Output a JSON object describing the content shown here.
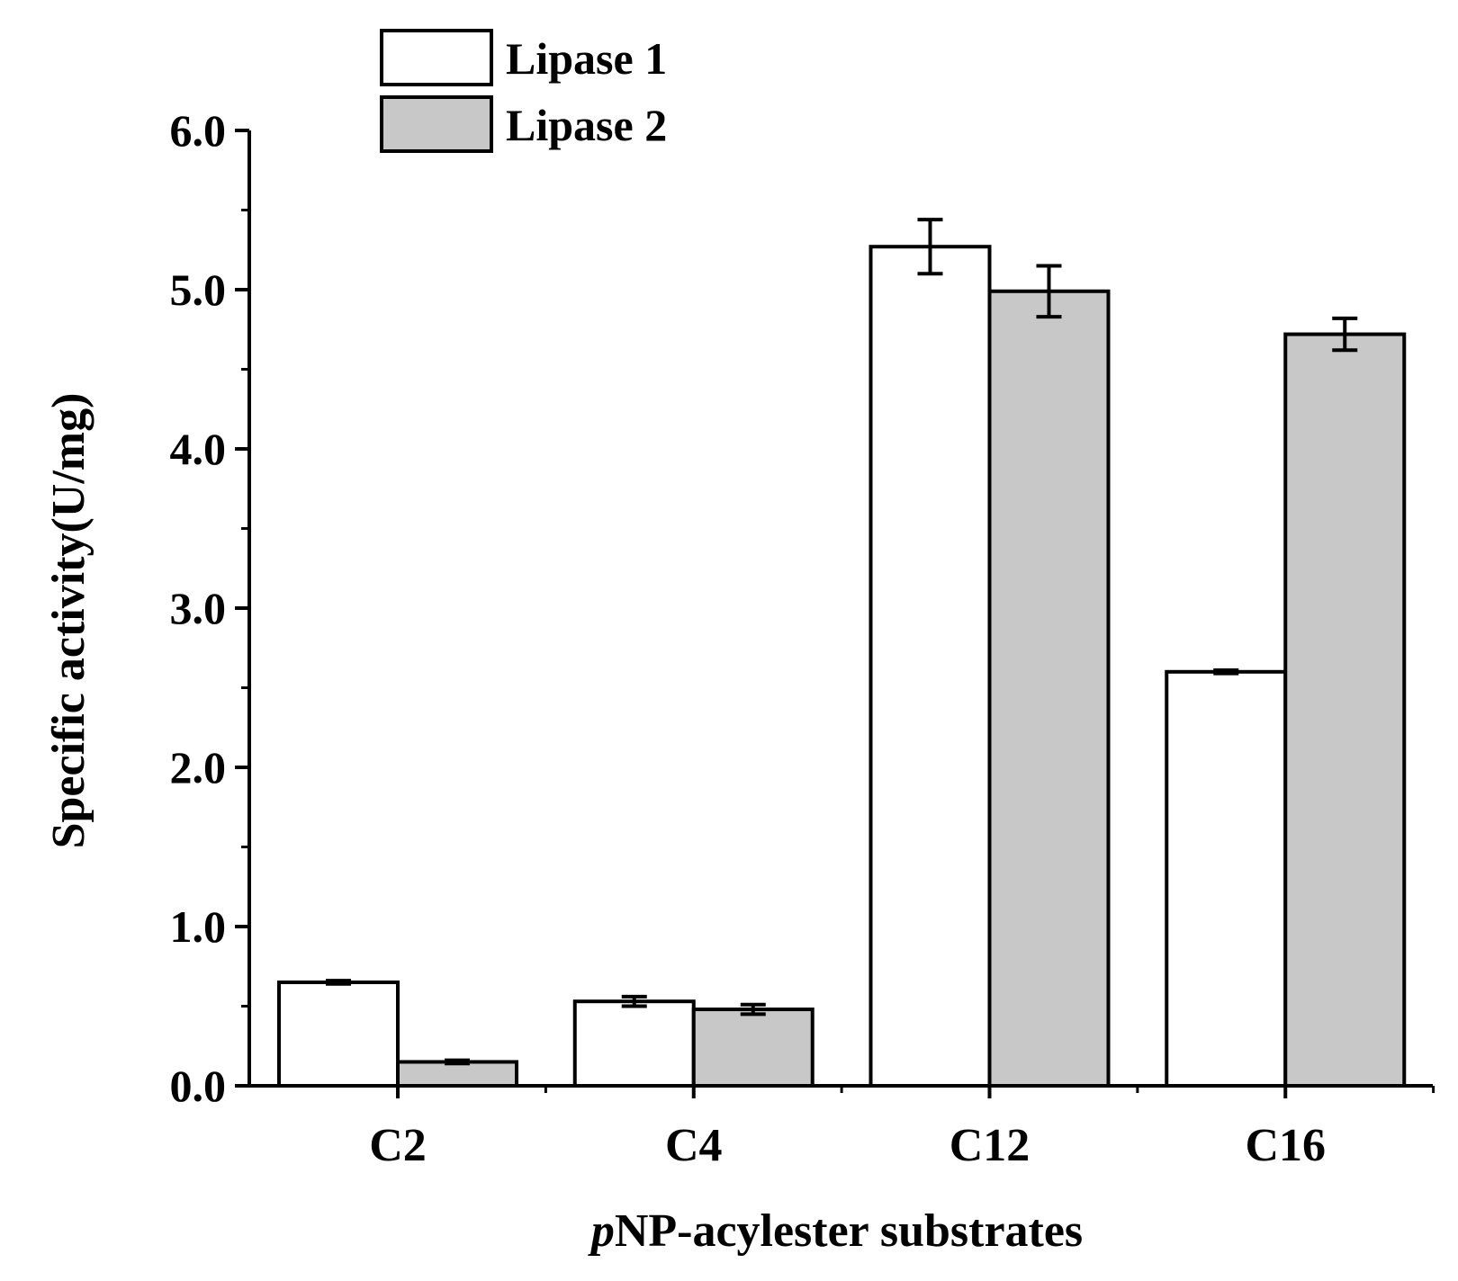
{
  "chart_data": {
    "type": "bar",
    "xlabel_italic_prefix": "p",
    "xlabel_rest": "NP-acylester substrates",
    "ylabel": "Specific activity(U/mg)",
    "categories": [
      "C2",
      "C4",
      "C12",
      "C16"
    ],
    "ylim": [
      0,
      6
    ],
    "yticks": [
      0,
      1,
      2,
      3,
      4,
      5,
      6
    ],
    "ytick_labels": [
      "0.0",
      "1.0",
      "2.0",
      "3.0",
      "4.0",
      "5.0",
      "6.0"
    ],
    "legend_position": "top-left",
    "series": [
      {
        "name": "Lipase 1",
        "color": "#ffffff",
        "values": [
          0.65,
          0.53,
          5.27,
          2.6
        ],
        "errors": [
          0.01,
          0.03,
          0.17,
          0.01
        ]
      },
      {
        "name": "Lipase 2",
        "color": "#c8c8c8",
        "values": [
          0.15,
          0.48,
          4.99,
          4.72
        ],
        "errors": [
          0.01,
          0.03,
          0.16,
          0.1
        ]
      }
    ]
  }
}
